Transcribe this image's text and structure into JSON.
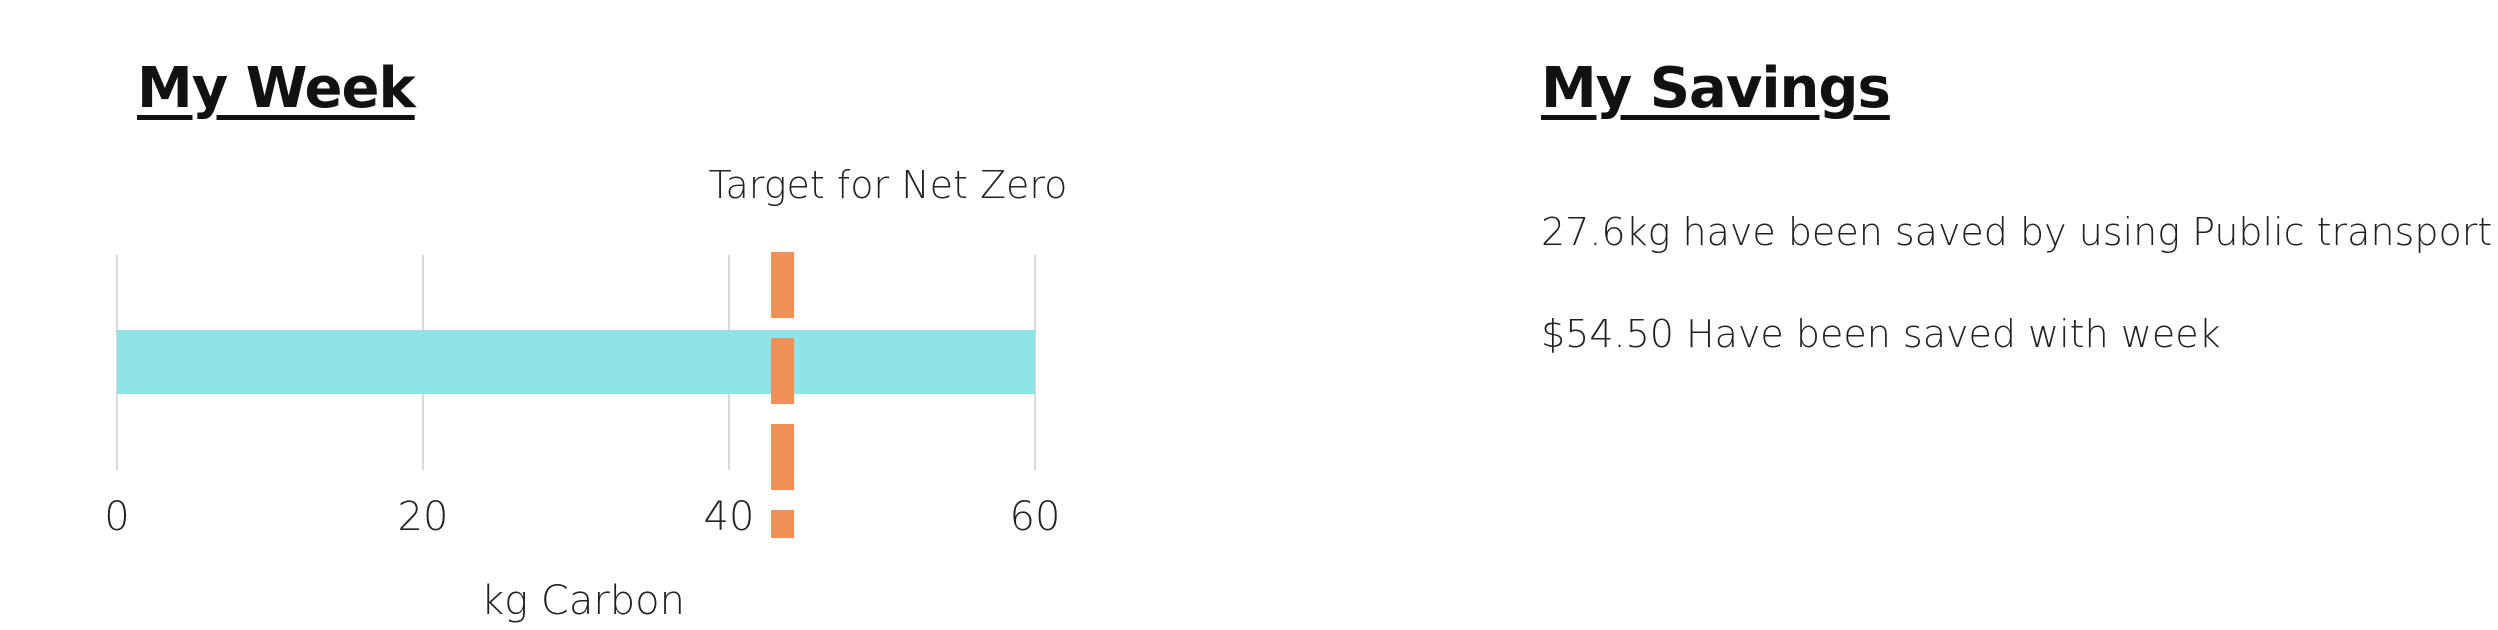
{
  "my_week": {
    "title": "My Week"
  },
  "my_savings": {
    "title": "My Savings",
    "lines": [
      "27.6kg have been saved by using Public transport",
      "$54.50 Have been saved with week"
    ]
  },
  "chart_data": {
    "type": "bar",
    "orientation": "horizontal",
    "categories": [
      "My Week"
    ],
    "values": [
      60
    ],
    "xlabel": "kg Carbon",
    "ylabel": "",
    "xlim": [
      0,
      60
    ],
    "xticks": [
      0,
      20,
      40,
      60
    ],
    "grid": true,
    "bar_color": "#8fe2e6",
    "reference_line": {
      "label": "Target for Net Zero",
      "value": 43.5,
      "style": "dashed",
      "color": "#ee9057"
    }
  }
}
